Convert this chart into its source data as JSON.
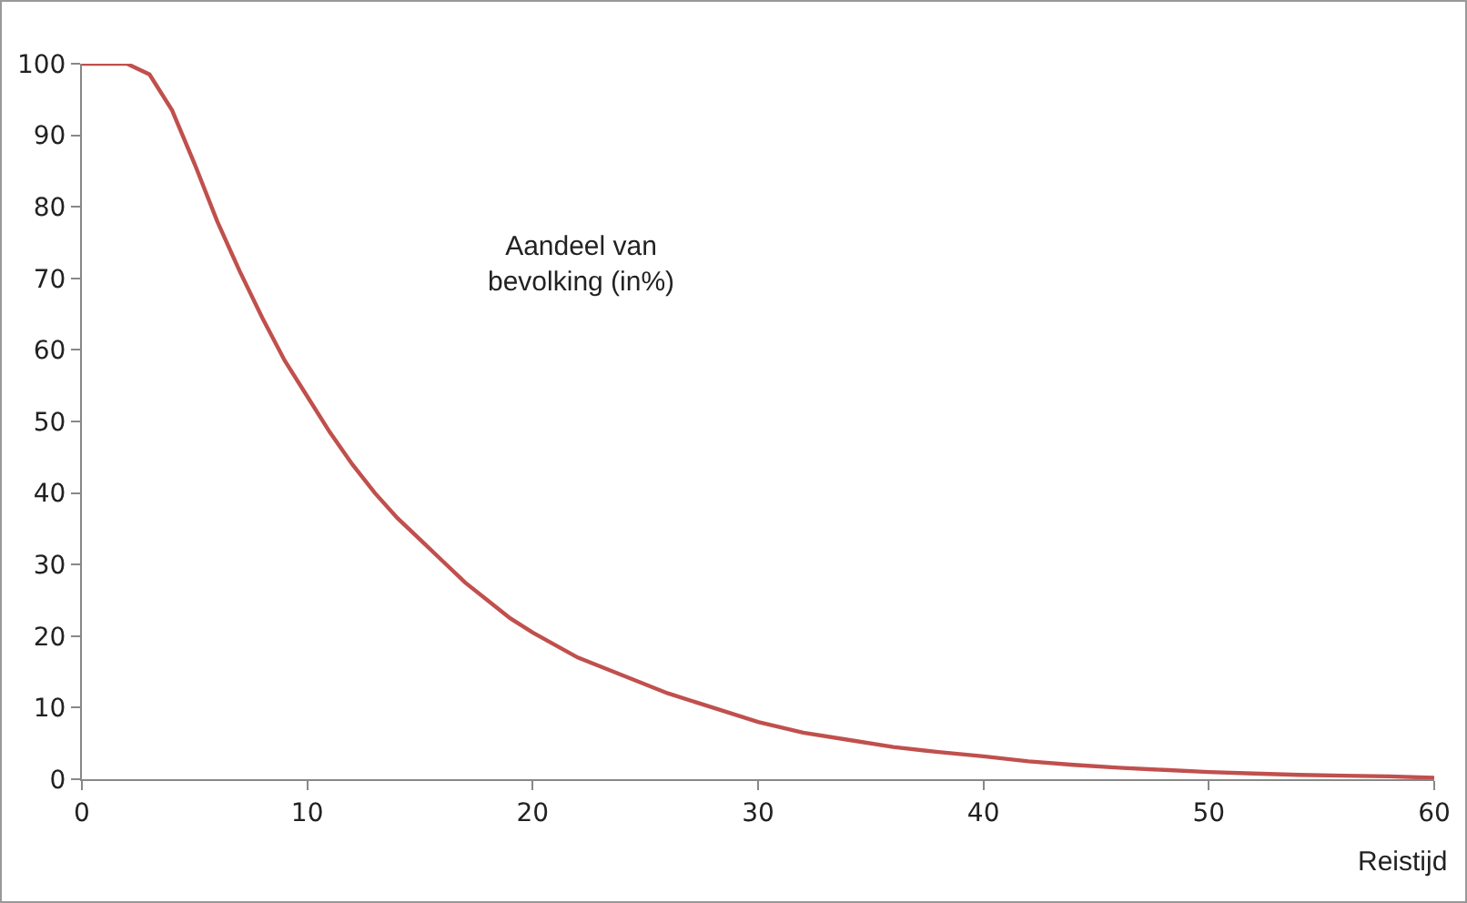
{
  "chart_data": {
    "type": "line",
    "xlabel": "Reistijd",
    "annotations": [
      "Aandeel van bevolking (in%)"
    ],
    "x": [
      0,
      2,
      3,
      4,
      5,
      6,
      7,
      8,
      9,
      10,
      11,
      12,
      13,
      14,
      15,
      16,
      17,
      18,
      19,
      20,
      22,
      24,
      26,
      28,
      30,
      32,
      34,
      36,
      38,
      40,
      42,
      44,
      46,
      48,
      50,
      52,
      54,
      56,
      58,
      60
    ],
    "series": [
      {
        "color": "#c0504d",
        "values": [
          100,
          100,
          98.5,
          93.5,
          86,
          78,
          71,
          64.5,
          58.5,
          53.5,
          48.5,
          44,
          40,
          36.5,
          33.5,
          30.5,
          27.5,
          25,
          22.5,
          20.5,
          17,
          14.5,
          12,
          10,
          8,
          6.5,
          5.5,
          4.5,
          3.8,
          3.2,
          2.5,
          2,
          1.6,
          1.3,
          1,
          0.8,
          0.6,
          0.5,
          0.4,
          0.2
        ]
      }
    ],
    "xlim": [
      0,
      60
    ],
    "xticks": [
      0,
      10,
      20,
      30,
      40,
      50,
      60
    ],
    "ylim": [
      0,
      100
    ],
    "yticks": [
      0,
      10,
      20,
      30,
      40,
      50,
      60,
      70,
      80,
      90,
      100
    ],
    "marker": "none",
    "line_style": "solid"
  }
}
